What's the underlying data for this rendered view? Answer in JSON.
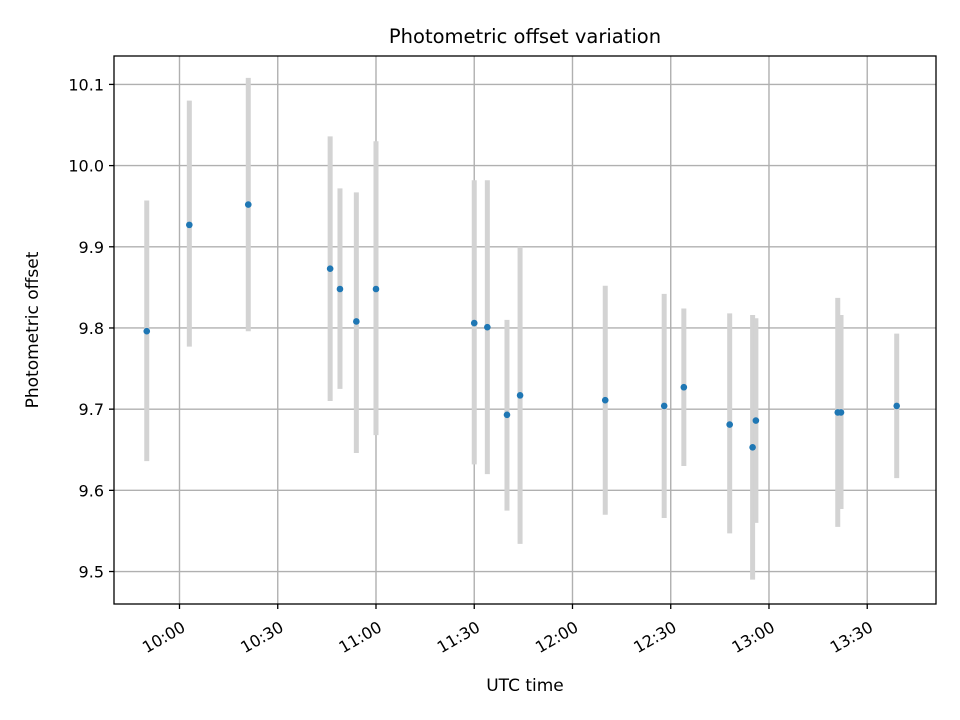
{
  "chart_data": {
    "type": "scatter",
    "title": "Photometric offset variation",
    "xlabel": "UTC time",
    "ylabel": "Photometric offset",
    "x_is_time": true,
    "xlim": [
      "09:40",
      "13:51"
    ],
    "ylim": [
      9.46,
      10.135
    ],
    "xticks": [
      "10:00",
      "10:30",
      "11:00",
      "11:30",
      "12:00",
      "12:30",
      "13:00",
      "13:30"
    ],
    "yticks": [
      9.5,
      9.6,
      9.7,
      9.8,
      9.9,
      10.0,
      10.1
    ],
    "grid": true,
    "marker_color": "#1f77b4",
    "errorbar_color": "#d3d3d3",
    "points": [
      {
        "x": "09:50",
        "y": 9.796,
        "ymin": 9.636,
        "ymax": 9.957
      },
      {
        "x": "10:03",
        "y": 9.927,
        "ymin": 9.777,
        "ymax": 10.08
      },
      {
        "x": "10:21",
        "y": 9.952,
        "ymin": 9.796,
        "ymax": 10.108
      },
      {
        "x": "10:46",
        "y": 9.873,
        "ymin": 9.71,
        "ymax": 10.036
      },
      {
        "x": "10:49",
        "y": 9.848,
        "ymin": 9.725,
        "ymax": 9.972
      },
      {
        "x": "10:54",
        "y": 9.808,
        "ymin": 9.646,
        "ymax": 9.967
      },
      {
        "x": "11:00",
        "y": 9.848,
        "ymin": 9.668,
        "ymax": 10.03
      },
      {
        "x": "11:30",
        "y": 9.806,
        "ymin": 9.632,
        "ymax": 9.982
      },
      {
        "x": "11:34",
        "y": 9.801,
        "ymin": 9.62,
        "ymax": 9.982
      },
      {
        "x": "11:40",
        "y": 9.693,
        "ymin": 9.575,
        "ymax": 9.81
      },
      {
        "x": "11:44",
        "y": 9.717,
        "ymin": 9.534,
        "ymax": 9.9
      },
      {
        "x": "12:10",
        "y": 9.711,
        "ymin": 9.57,
        "ymax": 9.852
      },
      {
        "x": "12:28",
        "y": 9.704,
        "ymin": 9.566,
        "ymax": 9.842
      },
      {
        "x": "12:34",
        "y": 9.727,
        "ymin": 9.63,
        "ymax": 9.824
      },
      {
        "x": "12:48",
        "y": 9.681,
        "ymin": 9.547,
        "ymax": 9.818
      },
      {
        "x": "12:55",
        "y": 9.653,
        "ymin": 9.49,
        "ymax": 9.816
      },
      {
        "x": "12:56",
        "y": 9.686,
        "ymin": 9.56,
        "ymax": 9.812
      },
      {
        "x": "13:21",
        "y": 9.696,
        "ymin": 9.555,
        "ymax": 9.837
      },
      {
        "x": "13:22",
        "y": 9.696,
        "ymin": 9.577,
        "ymax": 9.816
      },
      {
        "x": "13:39",
        "y": 9.704,
        "ymin": 9.615,
        "ymax": 9.793
      }
    ]
  }
}
